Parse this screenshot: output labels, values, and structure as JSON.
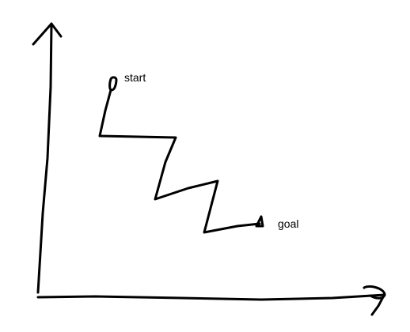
{
  "diagram": {
    "labels": {
      "start": "start",
      "goal": "goal"
    },
    "colors": {
      "background": "#ffffff",
      "ink": "#000000"
    }
  }
}
